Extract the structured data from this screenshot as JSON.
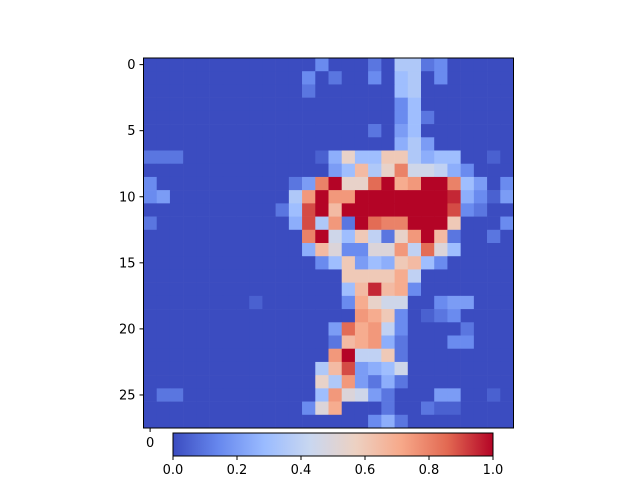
{
  "chart_data": {
    "type": "heatmap",
    "title": "",
    "xlabel": "",
    "ylabel": "",
    "rows": 28,
    "cols": 28,
    "colormap": "coolwarm",
    "colormap_colors": [
      "#3b4cc0",
      "#6788ee",
      "#9abbff",
      "#c9d7f0",
      "#edd1c2",
      "#f7a889",
      "#e26952",
      "#b40426"
    ],
    "vmin": 0.0,
    "vmax": 1.0,
    "x_ticks": [
      0
    ],
    "x_tick_labels": [
      "0"
    ],
    "y_ticks": [
      0,
      5,
      10,
      15,
      20,
      25
    ],
    "y_tick_labels": [
      "0",
      "5",
      "10",
      "15",
      "20",
      "25"
    ],
    "colorbar": {
      "orientation": "horizontal",
      "ticks": [
        0.0,
        0.2,
        0.4,
        0.6,
        0.8,
        1.0
      ],
      "tick_labels": [
        "0.0",
        "0.2",
        "0.4",
        "0.6",
        "0.8",
        "1.0"
      ]
    },
    "values": [
      [
        0,
        0,
        0,
        0,
        0,
        0,
        0,
        0,
        0,
        0,
        0,
        0,
        0,
        0.15,
        0,
        0,
        0,
        0.1,
        0,
        0.35,
        0.35,
        0.1,
        0.15,
        0,
        0,
        0,
        0,
        0
      ],
      [
        0,
        0,
        0,
        0,
        0,
        0,
        0,
        0,
        0,
        0,
        0,
        0,
        0.15,
        0,
        0.1,
        0,
        0,
        0.15,
        0,
        0.3,
        0.35,
        0,
        0.15,
        0,
        0,
        0,
        0,
        0
      ],
      [
        0,
        0,
        0,
        0,
        0,
        0,
        0,
        0,
        0,
        0,
        0,
        0,
        0.1,
        0,
        0,
        0,
        0,
        0,
        0,
        0.3,
        0.35,
        0,
        0,
        0,
        0,
        0,
        0,
        0
      ],
      [
        0,
        0,
        0,
        0,
        0,
        0,
        0,
        0,
        0,
        0,
        0,
        0,
        0,
        0,
        0,
        0,
        0,
        0,
        0,
        0.15,
        0.3,
        0,
        0,
        0,
        0,
        0,
        0,
        0
      ],
      [
        0,
        0,
        0,
        0,
        0,
        0,
        0,
        0,
        0,
        0,
        0,
        0,
        0,
        0,
        0,
        0,
        0,
        0,
        0,
        0.15,
        0.3,
        0.1,
        0,
        0,
        0,
        0,
        0,
        0
      ],
      [
        0,
        0,
        0,
        0,
        0,
        0,
        0,
        0,
        0,
        0,
        0,
        0,
        0,
        0,
        0,
        0,
        0,
        0.1,
        0,
        0.2,
        0.3,
        0,
        0,
        0,
        0,
        0,
        0,
        0
      ],
      [
        0,
        0,
        0,
        0,
        0,
        0,
        0,
        0,
        0,
        0,
        0,
        0,
        0,
        0,
        0,
        0,
        0,
        0,
        0,
        0.25,
        0.35,
        0.2,
        0,
        0,
        0,
        0,
        0,
        0
      ],
      [
        0.1,
        0.1,
        0.1,
        0,
        0,
        0,
        0,
        0,
        0,
        0,
        0,
        0,
        0,
        0.05,
        0.25,
        0.55,
        0.3,
        0.3,
        0.6,
        0.6,
        0.35,
        0.25,
        0.3,
        0.3,
        0,
        0,
        0.05,
        0
      ],
      [
        0,
        0,
        0,
        0,
        0,
        0,
        0,
        0,
        0,
        0,
        0,
        0,
        0,
        0,
        0.2,
        0.3,
        0.65,
        0.35,
        0.55,
        0.8,
        0.45,
        0.45,
        0.4,
        0.25,
        0.15,
        0,
        0,
        0
      ],
      [
        0.15,
        0,
        0,
        0,
        0,
        0,
        0,
        0,
        0,
        0,
        0,
        0.1,
        0.2,
        0.8,
        1.0,
        0.55,
        0.55,
        0.85,
        1.0,
        0.7,
        0.75,
        1.0,
        1.0,
        0.8,
        0.3,
        0.2,
        0,
        0.15
      ],
      [
        0.15,
        0.2,
        0,
        0,
        0,
        0,
        0,
        0,
        0,
        0,
        0,
        0.35,
        0.75,
        1.0,
        0.75,
        0.75,
        1.0,
        1.0,
        1.0,
        1.0,
        1.0,
        1.0,
        1.0,
        0.95,
        0.25,
        0.15,
        0.05,
        0.2
      ],
      [
        0,
        0,
        0,
        0,
        0,
        0,
        0,
        0,
        0,
        0,
        0.1,
        0.3,
        0.9,
        1.0,
        0.65,
        1.0,
        1.0,
        1.0,
        1.0,
        1.0,
        1.0,
        1.0,
        1.0,
        0.9,
        0.15,
        0.1,
        0,
        0
      ],
      [
        0.1,
        0,
        0,
        0,
        0,
        0,
        0,
        0,
        0,
        0,
        0,
        0.25,
        0.9,
        0.35,
        0.75,
        0.1,
        1.0,
        0.85,
        0.8,
        0.8,
        1.0,
        1.0,
        1.0,
        0.6,
        0,
        0,
        0,
        0.15
      ],
      [
        0,
        0,
        0,
        0,
        0,
        0,
        0,
        0,
        0,
        0,
        0,
        0,
        0.8,
        1.0,
        0.45,
        0.3,
        0.6,
        0.4,
        0.1,
        0.55,
        0.75,
        1.0,
        0.65,
        0.1,
        0,
        0,
        0.1,
        0
      ],
      [
        0,
        0,
        0,
        0,
        0,
        0,
        0,
        0,
        0,
        0,
        0,
        0,
        0.25,
        0.65,
        0.5,
        0.15,
        0.15,
        0.5,
        0.5,
        0.75,
        0.4,
        0.85,
        0.5,
        0.3,
        0,
        0,
        0,
        0
      ],
      [
        0,
        0,
        0,
        0,
        0,
        0,
        0,
        0,
        0,
        0,
        0,
        0,
        0,
        0.15,
        0.3,
        0.6,
        0.2,
        0.3,
        0.25,
        0.6,
        0.65,
        0.3,
        0.15,
        0,
        0,
        0,
        0,
        0
      ],
      [
        0,
        0,
        0,
        0,
        0,
        0,
        0,
        0,
        0,
        0,
        0,
        0,
        0,
        0,
        0,
        0.6,
        0.6,
        0.6,
        0.6,
        0.7,
        0.4,
        0,
        0,
        0,
        0,
        0,
        0,
        0
      ],
      [
        0,
        0,
        0,
        0,
        0,
        0,
        0,
        0,
        0,
        0,
        0,
        0,
        0,
        0,
        0,
        0.3,
        0.65,
        0.95,
        0.65,
        0.7,
        0.15,
        0,
        0,
        0,
        0,
        0,
        0,
        0
      ],
      [
        0,
        0,
        0,
        0,
        0,
        0,
        0,
        0,
        0.05,
        0,
        0,
        0,
        0,
        0,
        0,
        0.15,
        0.7,
        0.55,
        0.45,
        0.45,
        0,
        0,
        0.15,
        0.2,
        0.2,
        0,
        0,
        0
      ],
      [
        0,
        0,
        0,
        0,
        0,
        0,
        0,
        0,
        0,
        0,
        0,
        0,
        0,
        0,
        0,
        0,
        0.75,
        0.7,
        0.6,
        0.15,
        0,
        0.05,
        0.1,
        0.15,
        0,
        0,
        0,
        0
      ],
      [
        0,
        0,
        0,
        0,
        0,
        0,
        0,
        0,
        0,
        0,
        0,
        0,
        0,
        0,
        0.2,
        0.85,
        0.7,
        0.75,
        0.4,
        0.15,
        0,
        0,
        0,
        0,
        0.1,
        0,
        0,
        0
      ],
      [
        0,
        0,
        0,
        0,
        0,
        0,
        0,
        0,
        0,
        0,
        0,
        0,
        0,
        0,
        0.1,
        0.65,
        0.7,
        0.75,
        0.25,
        0.1,
        0,
        0,
        0,
        0.15,
        0.15,
        0,
        0,
        0
      ],
      [
        0,
        0,
        0,
        0,
        0,
        0,
        0,
        0,
        0,
        0,
        0,
        0,
        0,
        0,
        0.75,
        1.0,
        0.4,
        0.4,
        0.6,
        0.1,
        0,
        0,
        0,
        0,
        0,
        0,
        0,
        0
      ],
      [
        0,
        0,
        0,
        0,
        0,
        0,
        0,
        0,
        0,
        0,
        0,
        0,
        0,
        0.35,
        0.65,
        0.9,
        0.2,
        0.25,
        0.3,
        0.45,
        0,
        0,
        0,
        0,
        0,
        0,
        0,
        0
      ],
      [
        0,
        0,
        0,
        0,
        0,
        0,
        0,
        0,
        0,
        0,
        0,
        0,
        0,
        0.55,
        0.35,
        0.75,
        0.2,
        0.1,
        0.25,
        0.1,
        0,
        0,
        0,
        0,
        0,
        0,
        0,
        0
      ],
      [
        0,
        0.1,
        0.1,
        0,
        0,
        0,
        0,
        0,
        0,
        0,
        0,
        0,
        0,
        0.3,
        0.75,
        0.5,
        0.45,
        0.2,
        0.1,
        0,
        0,
        0,
        0.2,
        0.2,
        0,
        0,
        0.05,
        0
      ],
      [
        0,
        0,
        0,
        0,
        0,
        0,
        0,
        0,
        0,
        0,
        0,
        0,
        0.15,
        0.5,
        0.7,
        0,
        0,
        0,
        0.1,
        0,
        0,
        0.1,
        0.05,
        0.05,
        0,
        0,
        0,
        0
      ],
      [
        0,
        0,
        0,
        0,
        0,
        0,
        0,
        0,
        0,
        0,
        0,
        0,
        0,
        0,
        0,
        0,
        0,
        0.15,
        0.25,
        0.1,
        0,
        0,
        0,
        0,
        0,
        0,
        0,
        0
      ]
    ]
  }
}
